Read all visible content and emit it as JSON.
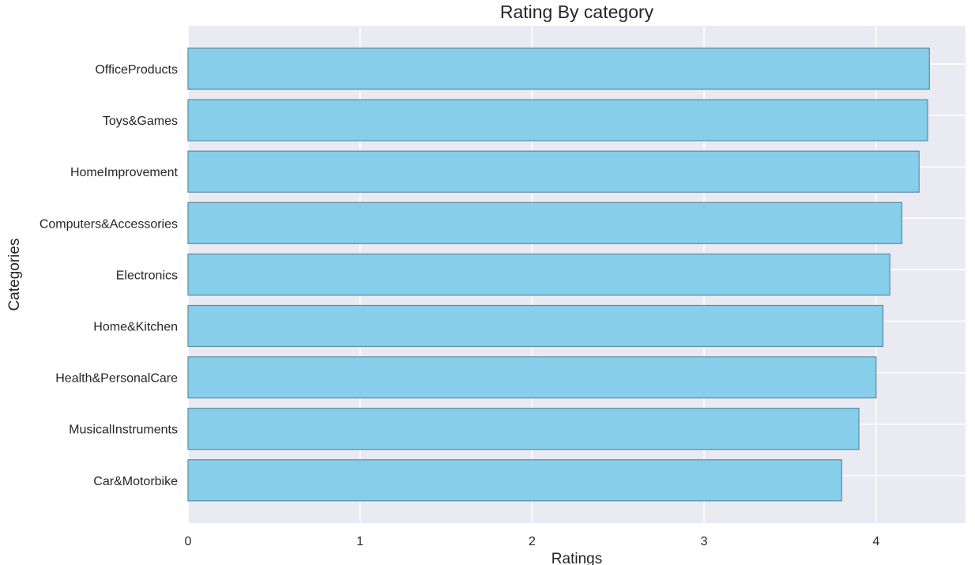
{
  "chart_data": {
    "type": "bar",
    "orientation": "horizontal",
    "title": "Rating By category",
    "xlabel": "Ratings",
    "ylabel": "Categories",
    "categories": [
      "OfficeProducts",
      "Toys&Games",
      "HomeImprovement",
      "Computers&Accessories",
      "Electronics",
      "Home&Kitchen",
      "Health&PersonalCare",
      "MusicalInstruments",
      "Car&Motorbike"
    ],
    "values": [
      4.31,
      4.3,
      4.25,
      4.15,
      4.08,
      4.04,
      4.0,
      3.9,
      3.8
    ],
    "xlim": [
      0,
      4.52
    ],
    "xticks": [
      "0",
      "1",
      "2",
      "3",
      "4"
    ],
    "grid": true,
    "legend": false,
    "colors": {
      "bar_fill": "#87CEEB",
      "bar_edge": "#5b8ba3",
      "plot_background": "#EAEAF2",
      "grid": "#ffffff",
      "text": "#262626"
    }
  }
}
